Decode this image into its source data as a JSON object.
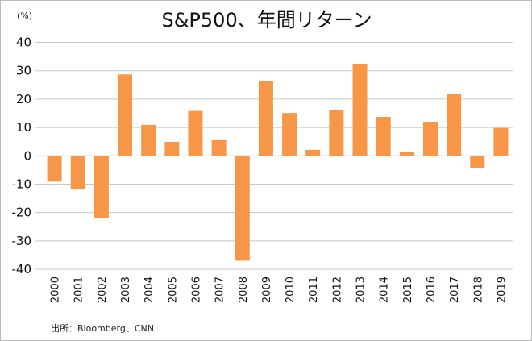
{
  "chart_data": {
    "type": "bar",
    "title": "S&P500、年間リターン",
    "ylabel": "(%)",
    "xlabel": "",
    "source": "出所：Bloomberg、CNN",
    "categories": [
      "2000",
      "2001",
      "2002",
      "2003",
      "2004",
      "2005",
      "2006",
      "2007",
      "2008",
      "2009",
      "2010",
      "2011",
      "2012",
      "2013",
      "2014",
      "2015",
      "2016",
      "2017",
      "2018",
      "2019"
    ],
    "values": [
      -9.1,
      -11.9,
      -22.1,
      28.7,
      10.9,
      4.9,
      15.8,
      5.5,
      -37.0,
      26.5,
      15.1,
      2.1,
      16.0,
      32.4,
      13.7,
      1.4,
      12.0,
      21.8,
      -4.4,
      9.8
    ],
    "ylim": [
      -40,
      40
    ],
    "yticks": [
      "40",
      "30",
      "20",
      "10",
      "0",
      "-10",
      "-20",
      "-30",
      "-40"
    ],
    "grid": true,
    "bar_color": "#F79646"
  }
}
